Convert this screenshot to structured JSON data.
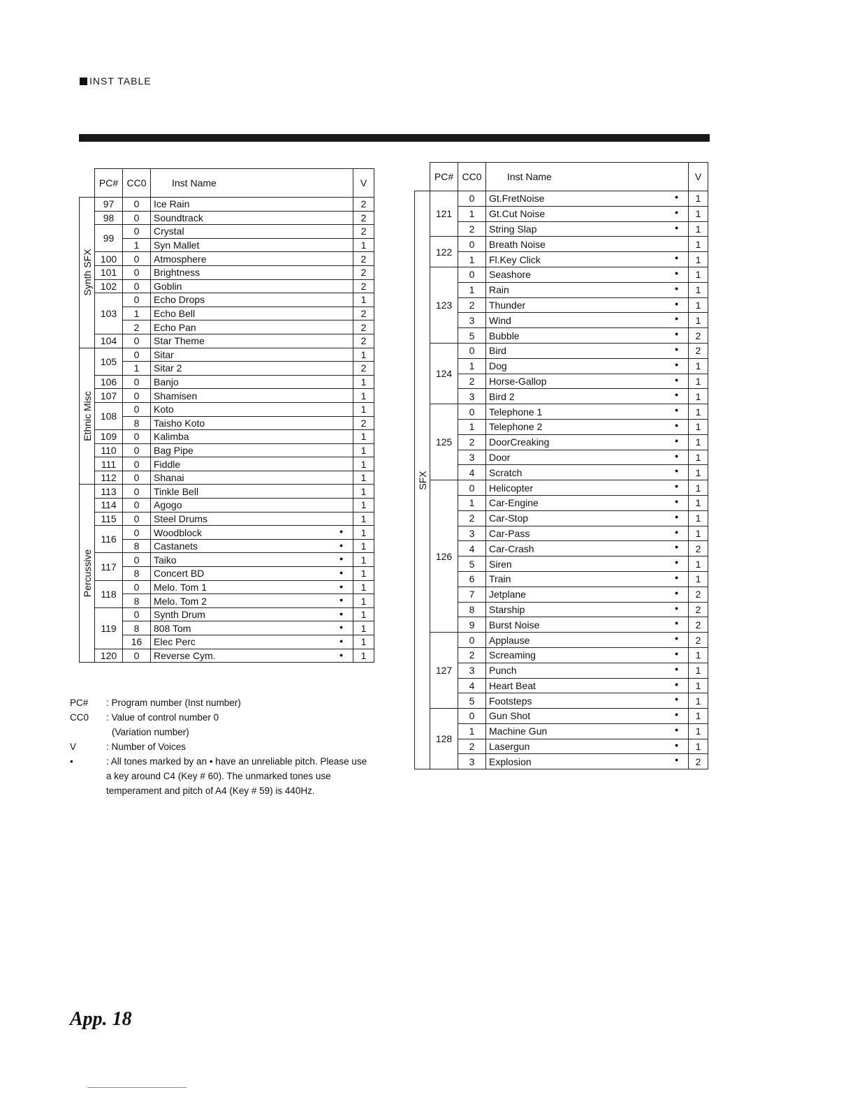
{
  "header": {
    "title": "INST TABLE"
  },
  "columns": {
    "pc": "PC#",
    "cc0": "CC0",
    "name": "Inst Name",
    "v": "V"
  },
  "left_table": [
    {
      "group": "Synth SFX",
      "programs": [
        {
          "pc": "97",
          "rows": [
            {
              "cc0": "0",
              "name": "Ice Rain",
              "dot": false,
              "v": "2"
            }
          ]
        },
        {
          "pc": "98",
          "rows": [
            {
              "cc0": "0",
              "name": "Soundtrack",
              "dot": false,
              "v": "2"
            }
          ]
        },
        {
          "pc": "99",
          "rows": [
            {
              "cc0": "0",
              "name": "Crystal",
              "dot": false,
              "v": "2"
            },
            {
              "cc0": "1",
              "name": "Syn Mallet",
              "dot": false,
              "v": "1"
            }
          ]
        },
        {
          "pc": "100",
          "rows": [
            {
              "cc0": "0",
              "name": "Atmosphere",
              "dot": false,
              "v": "2"
            }
          ]
        },
        {
          "pc": "101",
          "rows": [
            {
              "cc0": "0",
              "name": "Brightness",
              "dot": false,
              "v": "2"
            }
          ]
        },
        {
          "pc": "102",
          "rows": [
            {
              "cc0": "0",
              "name": "Goblin",
              "dot": false,
              "v": "2"
            }
          ]
        },
        {
          "pc": "103",
          "rows": [
            {
              "cc0": "0",
              "name": "Echo Drops",
              "dot": false,
              "v": "1"
            },
            {
              "cc0": "1",
              "name": "Echo Bell",
              "dot": false,
              "v": "2"
            },
            {
              "cc0": "2",
              "name": "Echo Pan",
              "dot": false,
              "v": "2"
            }
          ]
        },
        {
          "pc": "104",
          "rows": [
            {
              "cc0": "0",
              "name": "Star Theme",
              "dot": false,
              "v": "2"
            }
          ]
        }
      ]
    },
    {
      "group": "Ethnic Misc",
      "programs": [
        {
          "pc": "105",
          "rows": [
            {
              "cc0": "0",
              "name": "Sitar",
              "dot": false,
              "v": "1"
            },
            {
              "cc0": "1",
              "name": "Sitar 2",
              "dot": false,
              "v": "2"
            }
          ]
        },
        {
          "pc": "106",
          "rows": [
            {
              "cc0": "0",
              "name": "Banjo",
              "dot": false,
              "v": "1"
            }
          ]
        },
        {
          "pc": "107",
          "rows": [
            {
              "cc0": "0",
              "name": "Shamisen",
              "dot": false,
              "v": "1"
            }
          ]
        },
        {
          "pc": "108",
          "rows": [
            {
              "cc0": "0",
              "name": "Koto",
              "dot": false,
              "v": "1"
            },
            {
              "cc0": "8",
              "name": "Taisho Koto",
              "dot": false,
              "v": "2"
            }
          ]
        },
        {
          "pc": "109",
          "rows": [
            {
              "cc0": "0",
              "name": "Kalimba",
              "dot": false,
              "v": "1"
            }
          ]
        },
        {
          "pc": "110",
          "rows": [
            {
              "cc0": "0",
              "name": "Bag Pipe",
              "dot": false,
              "v": "1"
            }
          ]
        },
        {
          "pc": "111",
          "rows": [
            {
              "cc0": "0",
              "name": "Fiddle",
              "dot": false,
              "v": "1"
            }
          ]
        },
        {
          "pc": "112",
          "rows": [
            {
              "cc0": "0",
              "name": "Shanai",
              "dot": false,
              "v": "1"
            }
          ]
        }
      ]
    },
    {
      "group": "Percussive",
      "programs": [
        {
          "pc": "113",
          "rows": [
            {
              "cc0": "0",
              "name": "Tinkle Bell",
              "dot": false,
              "v": "1"
            }
          ]
        },
        {
          "pc": "114",
          "rows": [
            {
              "cc0": "0",
              "name": "Agogo",
              "dot": false,
              "v": "1"
            }
          ]
        },
        {
          "pc": "115",
          "rows": [
            {
              "cc0": "0",
              "name": "Steel Drums",
              "dot": false,
              "v": "1"
            }
          ]
        },
        {
          "pc": "116",
          "rows": [
            {
              "cc0": "0",
              "name": "Woodblock",
              "dot": true,
              "v": "1"
            },
            {
              "cc0": "8",
              "name": "Castanets",
              "dot": true,
              "v": "1"
            }
          ]
        },
        {
          "pc": "117",
          "rows": [
            {
              "cc0": "0",
              "name": "Taiko",
              "dot": true,
              "v": "1"
            },
            {
              "cc0": "8",
              "name": "Concert BD",
              "dot": true,
              "v": "1"
            }
          ]
        },
        {
          "pc": "118",
          "rows": [
            {
              "cc0": "0",
              "name": "Melo. Tom 1",
              "dot": true,
              "v": "1"
            },
            {
              "cc0": "8",
              "name": "Melo. Tom 2",
              "dot": true,
              "v": "1"
            }
          ]
        },
        {
          "pc": "119",
          "rows": [
            {
              "cc0": "0",
              "name": "Synth Drum",
              "dot": true,
              "v": "1"
            },
            {
              "cc0": "8",
              "name": "808 Tom",
              "dot": true,
              "v": "1"
            },
            {
              "cc0": "16",
              "name": "Elec Perc",
              "dot": true,
              "v": "1"
            }
          ]
        },
        {
          "pc": "120",
          "rows": [
            {
              "cc0": "0",
              "name": "Reverse Cym.",
              "dot": true,
              "v": "1"
            }
          ]
        }
      ]
    }
  ],
  "right_table": [
    {
      "group": "SFX",
      "programs": [
        {
          "pc": "121",
          "rows": [
            {
              "cc0": "0",
              "name": "Gt.FretNoise",
              "dot": true,
              "v": "1"
            },
            {
              "cc0": "1",
              "name": "Gt.Cut Noise",
              "dot": true,
              "v": "1"
            },
            {
              "cc0": "2",
              "name": "String Slap",
              "dot": true,
              "v": "1"
            }
          ]
        },
        {
          "pc": "122",
          "rows": [
            {
              "cc0": "0",
              "name": "Breath Noise",
              "dot": false,
              "v": "1"
            },
            {
              "cc0": "1",
              "name": "Fl.Key Click",
              "dot": true,
              "v": "1"
            }
          ]
        },
        {
          "pc": "123",
          "rows": [
            {
              "cc0": "0",
              "name": "Seashore",
              "dot": true,
              "v": "1"
            },
            {
              "cc0": "1",
              "name": "Rain",
              "dot": true,
              "v": "1"
            },
            {
              "cc0": "2",
              "name": "Thunder",
              "dot": true,
              "v": "1"
            },
            {
              "cc0": "3",
              "name": "Wind",
              "dot": true,
              "v": "1"
            },
            {
              "cc0": "5",
              "name": "Bubble",
              "dot": true,
              "v": "2"
            }
          ]
        },
        {
          "pc": "124",
          "rows": [
            {
              "cc0": "0",
              "name": "Bird",
              "dot": true,
              "v": "2"
            },
            {
              "cc0": "1",
              "name": "Dog",
              "dot": true,
              "v": "1"
            },
            {
              "cc0": "2",
              "name": "Horse-Gallop",
              "dot": true,
              "v": "1"
            },
            {
              "cc0": "3",
              "name": "Bird 2",
              "dot": true,
              "v": "1"
            }
          ]
        },
        {
          "pc": "125",
          "rows": [
            {
              "cc0": "0",
              "name": "Telephone 1",
              "dot": true,
              "v": "1"
            },
            {
              "cc0": "1",
              "name": "Telephone 2",
              "dot": true,
              "v": "1"
            },
            {
              "cc0": "2",
              "name": "DoorCreaking",
              "dot": true,
              "v": "1"
            },
            {
              "cc0": "3",
              "name": "Door",
              "dot": true,
              "v": "1"
            },
            {
              "cc0": "4",
              "name": "Scratch",
              "dot": true,
              "v": "1"
            }
          ]
        },
        {
          "pc": "126",
          "rows": [
            {
              "cc0": "0",
              "name": "Helicopter",
              "dot": true,
              "v": "1"
            },
            {
              "cc0": "1",
              "name": "Car-Engine",
              "dot": true,
              "v": "1"
            },
            {
              "cc0": "2",
              "name": "Car-Stop",
              "dot": true,
              "v": "1"
            },
            {
              "cc0": "3",
              "name": "Car-Pass",
              "dot": true,
              "v": "1"
            },
            {
              "cc0": "4",
              "name": "Car-Crash",
              "dot": true,
              "v": "2"
            },
            {
              "cc0": "5",
              "name": "Siren",
              "dot": true,
              "v": "1"
            },
            {
              "cc0": "6",
              "name": "Train",
              "dot": true,
              "v": "1"
            },
            {
              "cc0": "7",
              "name": "Jetplane",
              "dot": true,
              "v": "2"
            },
            {
              "cc0": "8",
              "name": "Starship",
              "dot": true,
              "v": "2"
            },
            {
              "cc0": "9",
              "name": "Burst Noise",
              "dot": true,
              "v": "2"
            }
          ]
        },
        {
          "pc": "127",
          "rows": [
            {
              "cc0": "0",
              "name": "Applause",
              "dot": true,
              "v": "2"
            },
            {
              "cc0": "2",
              "name": "Screaming",
              "dot": true,
              "v": "1"
            },
            {
              "cc0": "3",
              "name": "Punch",
              "dot": true,
              "v": "1"
            },
            {
              "cc0": "4",
              "name": "Heart Beat",
              "dot": true,
              "v": "1"
            },
            {
              "cc0": "5",
              "name": "Footsteps",
              "dot": true,
              "v": "1"
            }
          ]
        },
        {
          "pc": "128",
          "rows": [
            {
              "cc0": "0",
              "name": "Gun Shot",
              "dot": true,
              "v": "1"
            },
            {
              "cc0": "1",
              "name": "Machine Gun",
              "dot": true,
              "v": "1"
            },
            {
              "cc0": "2",
              "name": "Lasergun",
              "dot": true,
              "v": "1"
            },
            {
              "cc0": "3",
              "name": "Explosion",
              "dot": true,
              "v": "2"
            }
          ]
        }
      ]
    }
  ],
  "dot_symbol": "•",
  "notes": [
    {
      "key": "PC#",
      "text": ": Program number (Inst number)"
    },
    {
      "key": "CC0",
      "text": ": Value of control number 0"
    },
    {
      "key": "",
      "text": "  (Variation number)"
    },
    {
      "key": "V",
      "text": ": Number of Voices"
    },
    {
      "key": "•",
      "text": ": All tones marked by an • have an unreliable pitch. Please use a key around C4 (Key # 60). The unmarked tones use temperament and pitch of A4 (Key # 59) is 440Hz."
    }
  ],
  "page_number": "App. 18"
}
